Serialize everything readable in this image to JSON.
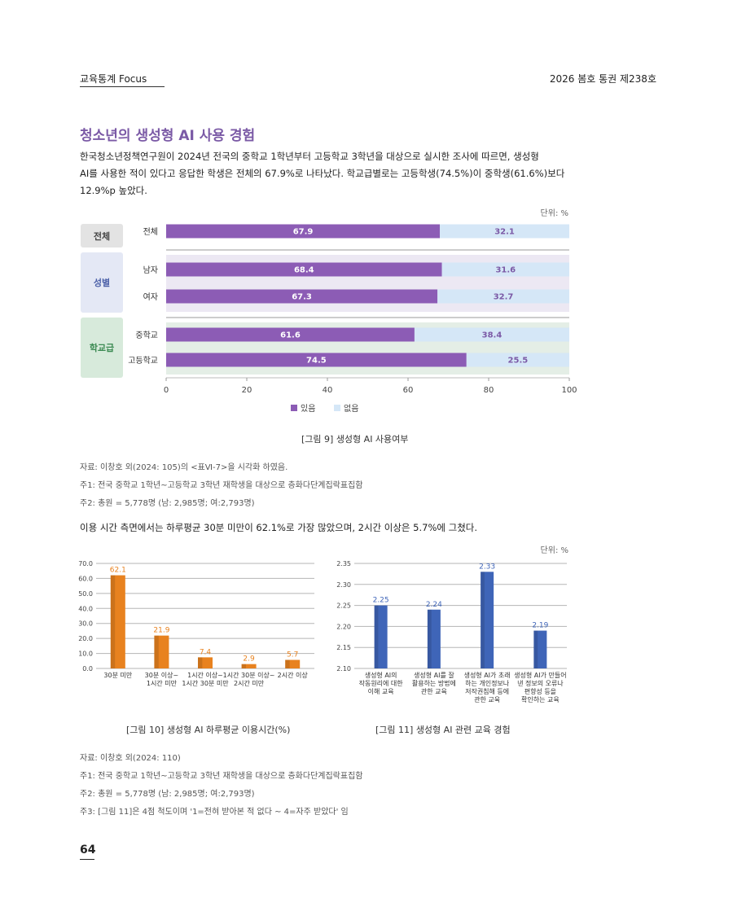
{
  "header": {
    "left": "교육통계 Focus",
    "right": "2026 봄호 통권 제238호"
  },
  "section_title": "청소년의 생성형 AI 사용 경험",
  "intro_lines": [
    "한국청소년정책연구원이 2024년 전국의 중학교 1학년부터 고등학교 3학년을 대상으로 실시한 조사에 따르면, 생성형",
    "AI를 사용한 적이 있다고 응답한 학생은 전체의 67.9%로 나타났다. 학교급별로는 고등학생(74.5%)이 중학생(61.6%)보다",
    "12.9%p 높았다."
  ],
  "fig9": {
    "unit": "단위: %",
    "caption": "[그림 9] 생성형 AI 사용여부",
    "groups": [
      "전체",
      "성별",
      "학교급"
    ],
    "legend": [
      "있음",
      "없음"
    ]
  },
  "notes1": [
    "자료: 이창호 외(2024: 105)의 <표Ⅵ-7>을 시각화 하였음.",
    "주1: 전국 중학교 1학년~고등학교 3학년 재학생을 대상으로 층화다단계집락표집함",
    "주2: 총원 = 5,778명 (남: 2,985명; 여:2,793명)"
  ],
  "paragraph2": "이용 시간 측면에서는 하루평균 30분 미만이 62.1%로 가장 많았으며, 2시간 이상은 5.7%에 그쳤다.",
  "unit2": "단위: %",
  "fig10_caption": "[그림 10] 생성형 AI 하루평균 이용시간(%)",
  "fig11_caption": "[그림 11] 생성형 AI 관련 교육 경험",
  "notes2": [
    "자료: 이창호 외(2024: 110)",
    "주1: 전국 중학교 1학년~고등학교 3학년 재학생을 대상으로 층화다단계집락표집함",
    "주2: 총원 = 5,778명 (남: 2,985명; 여:2,793명)",
    "주3: [그림 11]은 4점 척도이며 '1=전혀 받아본 적 없다 ~ 4=자주 받았다' 임"
  ],
  "page_number": "64",
  "chart_data": [
    {
      "type": "bar",
      "orientation": "horizontal",
      "stacked": true,
      "categories": [
        "전체",
        "남자",
        "여자",
        "중학교",
        "고등학교"
      ],
      "series": [
        {
          "name": "있음",
          "values": [
            67.9,
            68.4,
            67.3,
            61.6,
            74.5
          ],
          "color": "#8c5cb5"
        },
        {
          "name": "없음",
          "values": [
            32.1,
            31.6,
            32.7,
            38.4,
            25.5
          ],
          "color": "#d5e7f7"
        }
      ],
      "xlim": [
        0,
        100
      ],
      "xticks": [
        "0",
        "20",
        "40",
        "60",
        "80",
        "100"
      ],
      "legend": "bottom"
    },
    {
      "type": "bar",
      "categories": [
        "30분 미만",
        "30분 이상~\n1시간 미만",
        "1시간 이상~\n1시간 30분 미만",
        "1시간 30분 이상~\n2시간 미만",
        "2시간 이상"
      ],
      "values": [
        62.1,
        21.9,
        7.4,
        2.9,
        5.7
      ],
      "labels": [
        "62.1",
        "21.9",
        "7.4",
        "2.9",
        "5.7"
      ],
      "ylim": [
        0,
        70
      ],
      "yticks": [
        "0.0",
        "10.0",
        "20.0",
        "30.0",
        "40.0",
        "50.0",
        "60.0",
        "70.0"
      ],
      "color": "#e8821f"
    },
    {
      "type": "bar",
      "categories": [
        "생성형 AI의\n작동원리에 대한\n이해 교육",
        "생성형 AI를 잘\n활용하는 방법에\n관한 교육",
        "생성형 AI가 초래\n하는 개인정보나\n저작권침해 등에\n관한 교육",
        "생성형 AI가 만들어\n낸 정보의 오류나\n편향성 등을\n확인하는 교육"
      ],
      "values": [
        2.25,
        2.24,
        2.33,
        2.19
      ],
      "labels": [
        "2.25",
        "2.24",
        "2.33",
        "2.19"
      ],
      "ylim": [
        2.1,
        2.35
      ],
      "yticks": [
        "2.10",
        "2.15",
        "2.20",
        "2.25",
        "2.30",
        "2.35"
      ],
      "color": "#3f65b8"
    }
  ]
}
